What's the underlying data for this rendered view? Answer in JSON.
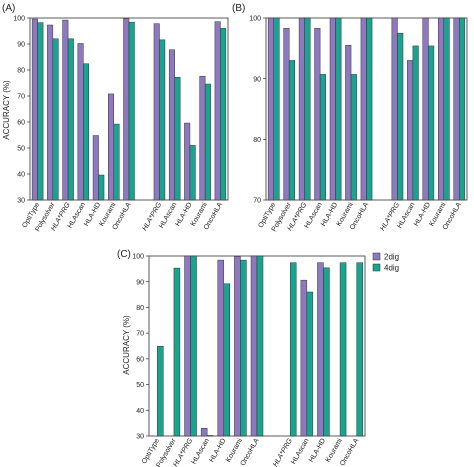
{
  "figure": {
    "legend": [
      {
        "label": "2dig",
        "color": "#8e79c0"
      },
      {
        "label": "4dig",
        "color": "#1aa38d"
      }
    ]
  },
  "chart_data": [
    {
      "panel": "(A)",
      "type": "bar",
      "ylabel": "ACCURACY (%)",
      "ylim": [
        30,
        100
      ],
      "yticks": [
        30,
        40,
        50,
        60,
        70,
        80,
        90,
        100
      ],
      "grid": false,
      "categories": [
        "OptiType",
        "Polysolver",
        "HLA*PRG",
        "HLAscan",
        "HLA-HD",
        "Kourami",
        "OncoHLA",
        "",
        "HLA*PRG",
        "HLAscan",
        "HLA-HD",
        "Kourami",
        "OncoHLA"
      ],
      "series": [
        {
          "name": "2dig",
          "values": [
            99.6,
            97.3,
            99.2,
            90.2,
            54.8,
            70.8,
            99.8,
            null,
            97.8,
            87.8,
            59.6,
            77.6,
            98.6
          ]
        },
        {
          "name": "4dig",
          "values": [
            98.2,
            92.0,
            92.0,
            82.4,
            39.6,
            59.2,
            98.4,
            null,
            91.6,
            77.2,
            51.0,
            74.6,
            96.0
          ]
        }
      ]
    },
    {
      "panel": "(B)",
      "type": "bar",
      "ylabel": "",
      "ylim": [
        70,
        100
      ],
      "yticks": [
        70,
        80,
        90,
        100
      ],
      "grid": false,
      "categories": [
        "OptiType",
        "Polysolver",
        "HLA*PRG",
        "HLAscan",
        "HLA-HD",
        "Kourami",
        "OncoHLA",
        "",
        "HLA*PRG",
        "HLAscan",
        "HLA-HD",
        "Kourami",
        "OncoHLA"
      ],
      "series": [
        {
          "name": "2dig",
          "values": [
            100,
            98.3,
            100,
            98.3,
            100,
            95.5,
            100,
            null,
            100,
            93.0,
            100,
            100,
            100
          ]
        },
        {
          "name": "4dig",
          "values": [
            100,
            93.0,
            100,
            90.7,
            100,
            90.7,
            100,
            null,
            97.5,
            95.4,
            95.4,
            100,
            100
          ]
        }
      ]
    },
    {
      "panel": "(C)",
      "type": "bar",
      "ylabel": "ACCURACY (%)",
      "ylim": [
        30,
        100
      ],
      "yticks": [
        30,
        40,
        50,
        60,
        70,
        80,
        90,
        100
      ],
      "grid": false,
      "categories": [
        "OptiType",
        "Polysolver",
        "HLA*PRG",
        "HLAscan",
        "HLA-HD",
        "Kourami",
        "OncoHLA",
        "",
        "HLA*PRG",
        "HLAscan",
        "HLA-HD",
        "Kourami",
        "OncoHLA"
      ],
      "series": [
        {
          "name": "2dig",
          "values": [
            null,
            null,
            100,
            33.0,
            98.4,
            99.8,
            100,
            null,
            null,
            90.6,
            97.4,
            null,
            null
          ]
        },
        {
          "name": "4dig",
          "values": [
            64.9,
            95.3,
            100,
            30.2,
            89.2,
            98.4,
            100,
            null,
            97.4,
            86.0,
            95.4,
            97.4,
            97.4
          ]
        }
      ]
    }
  ]
}
